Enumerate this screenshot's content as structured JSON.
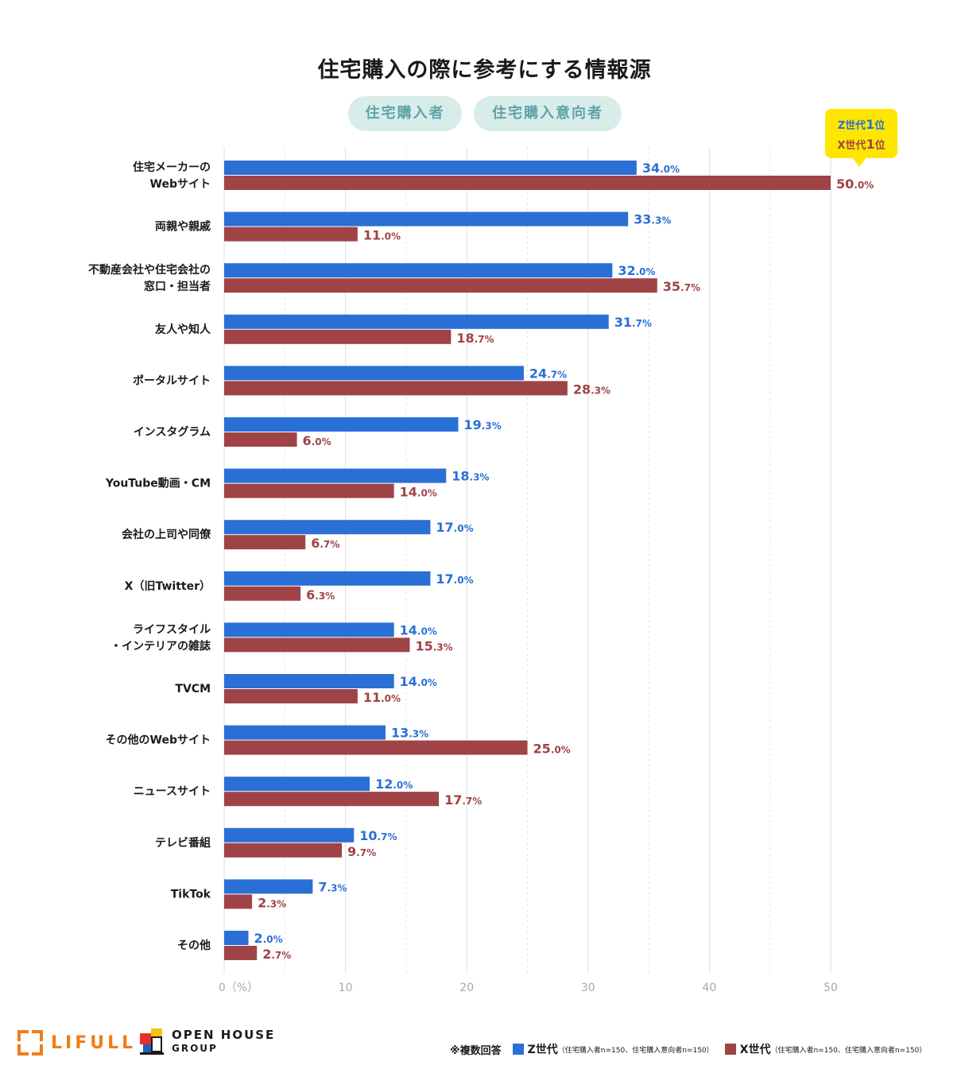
{
  "chart_data": {
    "type": "bar",
    "orientation": "horizontal",
    "title": "住宅購入の際に参考にする情報源",
    "groups": [
      "住宅購入者",
      "住宅購入意向者"
    ],
    "categories": [
      [
        "住宅メーカーの",
        "Webサイト"
      ],
      [
        "両親や親戚"
      ],
      [
        "不動産会社や住宅会社の",
        "窓口・担当者"
      ],
      [
        "友人や知人"
      ],
      [
        "ポータルサイト"
      ],
      [
        "インスタグラム"
      ],
      [
        "YouTube動画・CM"
      ],
      [
        "会社の上司や同僚"
      ],
      [
        "X（旧Twitter）"
      ],
      [
        "ライフスタイル",
        "・インテリアの雑誌"
      ],
      [
        "TVCM"
      ],
      [
        "その他のWebサイト"
      ],
      [
        "ニュースサイト"
      ],
      [
        "テレビ番組"
      ],
      [
        "TikTok"
      ],
      [
        "その他"
      ]
    ],
    "series": [
      {
        "name": "Z世代",
        "color": "#2a6fd6",
        "values": [
          34.0,
          33.3,
          32.0,
          31.7,
          24.7,
          19.3,
          18.3,
          17.0,
          17.0,
          14.0,
          14.0,
          13.3,
          12.0,
          10.7,
          7.3,
          2.0
        ]
      },
      {
        "name": "X世代",
        "color": "#9f4346",
        "values": [
          50.0,
          11.0,
          35.7,
          18.7,
          28.3,
          6.0,
          14.0,
          6.7,
          6.3,
          15.3,
          11.0,
          25.0,
          17.7,
          9.7,
          2.3,
          2.7
        ]
      }
    ],
    "x_ticks": [
      "0（%）",
      "10",
      "20",
      "30",
      "40",
      "50"
    ],
    "xlim": [
      0,
      50
    ],
    "unit": "%",
    "grid": true,
    "callout": {
      "line1_gen": "Z世代",
      "line1_rank": "1",
      "line1_suffix": "位",
      "line2_gen": "X世代",
      "line2_rank": "1",
      "line2_suffix": "位"
    }
  },
  "footer": {
    "lifull_logo": "LIFULL",
    "openhouse_line1": "OPEN HOUSE",
    "openhouse_line2": "GROUP",
    "note": "※複数回答",
    "legend_z_name": "Z世代",
    "legend_z_note": "（住宅購入者n=150、住宅購入意向者n=150）",
    "legend_x_name": "X世代",
    "legend_x_note": "（住宅購入者n=150、住宅購入意向者n=150）"
  }
}
